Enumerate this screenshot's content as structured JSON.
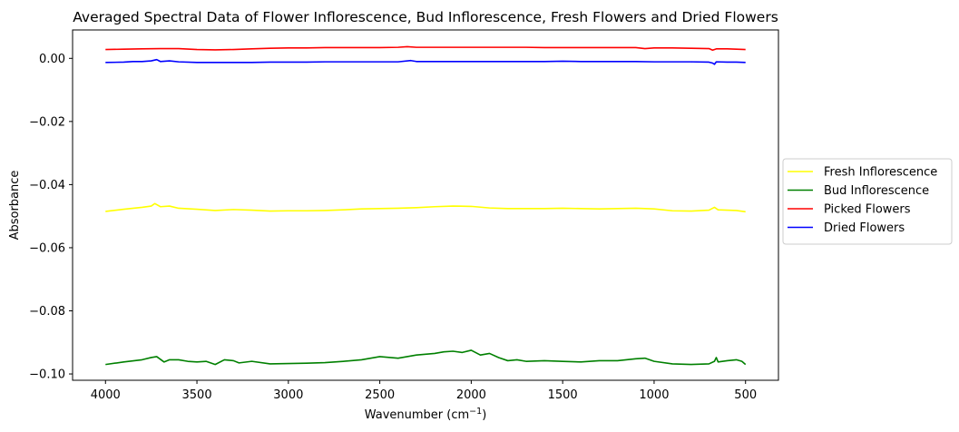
{
  "chart_data": {
    "type": "line",
    "title": "Averaged Spectral Data of Flower Inflorescence, Bud Inflorescence, Fresh Flowers and Dried Flowers",
    "xlabel": "Wavenumber (cm",
    "xlabel_sup": "−1",
    "xlabel_close": ")",
    "ylabel": "Absorbance",
    "xlim": [
      4180,
      320
    ],
    "ylim": [
      -0.102,
      0.009
    ],
    "x_ticks": [
      4000,
      3500,
      3000,
      2500,
      2000,
      1500,
      1000,
      500
    ],
    "x_tick_labels": [
      "4000",
      "3500",
      "3000",
      "2500",
      "2000",
      "1500",
      "1000",
      "500"
    ],
    "y_ticks": [
      0.0,
      -0.02,
      -0.04,
      -0.06,
      -0.08,
      -0.1
    ],
    "y_tick_labels": [
      "0.00",
      "−0.02",
      "−0.04",
      "−0.06",
      "−0.08",
      "−0.10"
    ],
    "grid": false,
    "legend_position": "center-right-outside",
    "series": [
      {
        "name": "Fresh Inflorescence",
        "color": "#ffff00",
        "x": [
          4000,
          3900,
          3800,
          3750,
          3730,
          3700,
          3650,
          3600,
          3500,
          3400,
          3300,
          3200,
          3100,
          3000,
          2900,
          2800,
          2700,
          2600,
          2500,
          2400,
          2300,
          2200,
          2100,
          2000,
          1900,
          1800,
          1700,
          1600,
          1500,
          1400,
          1300,
          1200,
          1100,
          1000,
          900,
          800,
          700,
          670,
          650,
          600,
          550,
          500
        ],
        "values": [
          -0.0485,
          -0.0478,
          -0.0472,
          -0.0468,
          -0.046,
          -0.047,
          -0.0468,
          -0.0475,
          -0.0478,
          -0.0482,
          -0.0479,
          -0.0481,
          -0.0484,
          -0.0483,
          -0.0483,
          -0.0482,
          -0.048,
          -0.0477,
          -0.0476,
          -0.0475,
          -0.0473,
          -0.047,
          -0.0468,
          -0.0469,
          -0.0474,
          -0.0476,
          -0.0476,
          -0.0476,
          -0.0475,
          -0.0476,
          -0.0477,
          -0.0476,
          -0.0475,
          -0.0477,
          -0.0483,
          -0.0484,
          -0.0481,
          -0.0472,
          -0.048,
          -0.0481,
          -0.0482,
          -0.0486
        ]
      },
      {
        "name": "Bud Inflorescence",
        "color": "#008000",
        "x": [
          4000,
          3900,
          3800,
          3750,
          3720,
          3680,
          3650,
          3600,
          3550,
          3500,
          3450,
          3400,
          3350,
          3300,
          3270,
          3200,
          3100,
          3000,
          2900,
          2800,
          2700,
          2600,
          2500,
          2400,
          2300,
          2200,
          2150,
          2100,
          2050,
          2000,
          1950,
          1900,
          1850,
          1800,
          1750,
          1700,
          1600,
          1500,
          1400,
          1300,
          1200,
          1100,
          1050,
          1000,
          900,
          800,
          700,
          670,
          660,
          650,
          600,
          550,
          520,
          500
        ],
        "values": [
          -0.097,
          -0.0962,
          -0.0955,
          -0.0948,
          -0.0945,
          -0.0962,
          -0.0955,
          -0.0955,
          -0.096,
          -0.0962,
          -0.096,
          -0.097,
          -0.0955,
          -0.0958,
          -0.0965,
          -0.096,
          -0.0968,
          -0.0967,
          -0.0966,
          -0.0964,
          -0.096,
          -0.0955,
          -0.0945,
          -0.095,
          -0.094,
          -0.0935,
          -0.093,
          -0.0928,
          -0.0932,
          -0.0925,
          -0.094,
          -0.0935,
          -0.0948,
          -0.0958,
          -0.0955,
          -0.096,
          -0.0958,
          -0.096,
          -0.0962,
          -0.0958,
          -0.0958,
          -0.0952,
          -0.095,
          -0.096,
          -0.0968,
          -0.097,
          -0.0968,
          -0.096,
          -0.0948,
          -0.0962,
          -0.0958,
          -0.0955,
          -0.096,
          -0.097
        ]
      },
      {
        "name": "Picked Flowers",
        "color": "#ff0000",
        "x": [
          4000,
          3900,
          3800,
          3700,
          3600,
          3500,
          3400,
          3300,
          3200,
          3100,
          3000,
          2900,
          2800,
          2700,
          2600,
          2500,
          2400,
          2350,
          2300,
          2200,
          2100,
          2000,
          1900,
          1800,
          1700,
          1600,
          1500,
          1400,
          1300,
          1200,
          1100,
          1050,
          1000,
          900,
          800,
          700,
          680,
          660,
          600,
          550,
          500
        ],
        "values": [
          0.0028,
          0.0029,
          0.003,
          0.0031,
          0.0031,
          0.0028,
          0.0027,
          0.0028,
          0.003,
          0.0032,
          0.0033,
          0.0033,
          0.0034,
          0.0034,
          0.0034,
          0.0034,
          0.0035,
          0.0037,
          0.0035,
          0.0035,
          0.0035,
          0.0035,
          0.0035,
          0.0035,
          0.0035,
          0.0034,
          0.0034,
          0.0034,
          0.0034,
          0.0034,
          0.0034,
          0.0031,
          0.0033,
          0.0033,
          0.0032,
          0.0031,
          0.0026,
          0.003,
          0.003,
          0.0029,
          0.0028
        ]
      },
      {
        "name": "Dried Flowers",
        "color": "#0000ff",
        "x": [
          4000,
          3900,
          3850,
          3800,
          3750,
          3720,
          3700,
          3650,
          3600,
          3500,
          3400,
          3300,
          3200,
          3100,
          3000,
          2900,
          2800,
          2700,
          2600,
          2500,
          2400,
          2330,
          2300,
          2200,
          2100,
          2000,
          1900,
          1800,
          1700,
          1600,
          1500,
          1400,
          1300,
          1200,
          1100,
          1000,
          900,
          800,
          700,
          680,
          670,
          660,
          600,
          550,
          500
        ],
        "values": [
          -0.0013,
          -0.0012,
          -0.001,
          -0.001,
          -0.0008,
          -0.0004,
          -0.001,
          -0.0008,
          -0.0011,
          -0.0013,
          -0.0013,
          -0.0013,
          -0.0013,
          -0.0012,
          -0.0012,
          -0.0012,
          -0.0011,
          -0.0011,
          -0.0011,
          -0.0011,
          -0.0011,
          -0.0007,
          -0.001,
          -0.001,
          -0.001,
          -0.001,
          -0.001,
          -0.001,
          -0.001,
          -0.001,
          -0.0009,
          -0.001,
          -0.001,
          -0.001,
          -0.001,
          -0.0011,
          -0.0011,
          -0.0011,
          -0.0012,
          -0.0015,
          -0.0019,
          -0.0011,
          -0.0012,
          -0.0012,
          -0.0013
        ]
      }
    ]
  }
}
